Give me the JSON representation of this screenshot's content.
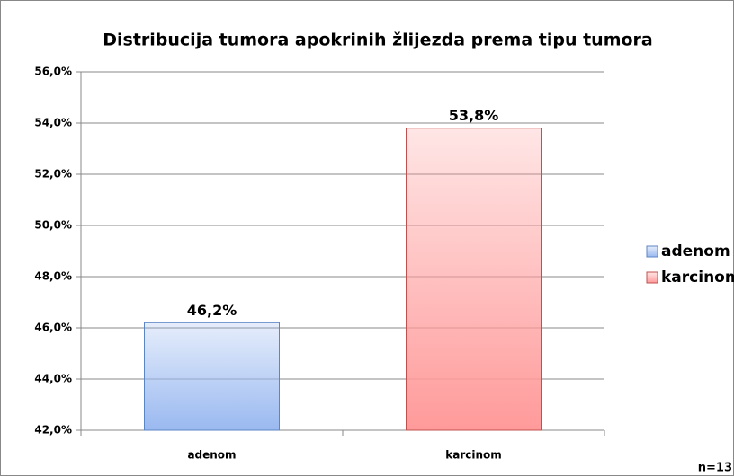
{
  "chart_data": {
    "type": "bar",
    "title": "Distribucija tumora apokrinih žlijezda prema tipu tumora",
    "categories": [
      "adenom",
      "karcinom"
    ],
    "series": [
      {
        "name": "adenom",
        "color": "#9ab9f0",
        "edgecolor": "#5b86c5",
        "values": [
          46.2,
          null
        ],
        "value_labels": [
          "46,2%",
          null
        ]
      },
      {
        "name": "karcinom",
        "color": "#ff9a9a",
        "edgecolor": "#c0504d",
        "values": [
          null,
          53.8
        ],
        "value_labels": [
          null,
          "53,8%"
        ]
      }
    ],
    "ylim": [
      42,
      56
    ],
    "yticks": [
      {
        "value": 42,
        "label": "42,0%"
      },
      {
        "value": 44,
        "label": "44,0%"
      },
      {
        "value": 46,
        "label": "46,0%"
      },
      {
        "value": 48,
        "label": "48,0%"
      },
      {
        "value": 50,
        "label": "50,0%"
      },
      {
        "value": 52,
        "label": "52,0%"
      },
      {
        "value": 54,
        "label": "54,0%"
      },
      {
        "value": 56,
        "label": "56,0%"
      }
    ],
    "grid": true,
    "legend": "right",
    "annotation": "n=13"
  }
}
